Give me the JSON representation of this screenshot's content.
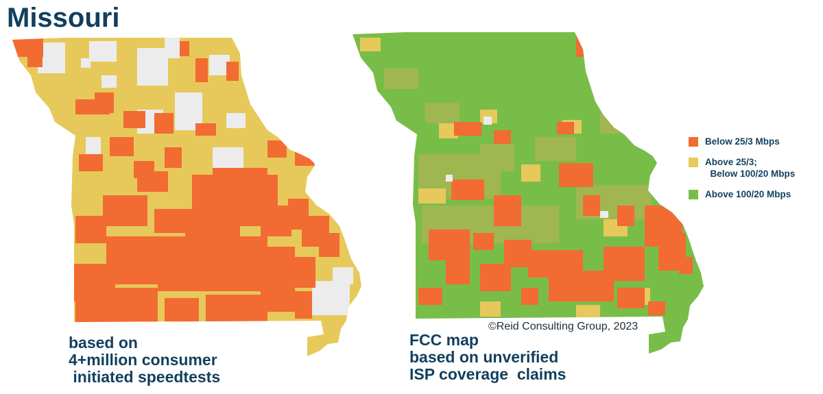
{
  "title": "Missouri",
  "left_map": {
    "caption_lines": [
      "based on",
      "4+million consumer",
      " initiated speedtests"
    ]
  },
  "right_map": {
    "caption_lines": [
      "FCC map",
      "based on unverified",
      "ISP coverage  claims"
    ]
  },
  "copyright": "©Reid Consulting Group, 2023",
  "legend": [
    {
      "lines": [
        "Below 25/3 Mbps"
      ],
      "color": "#f26b32"
    },
    {
      "lines": [
        "Above 25/3;",
        "  Below 100/20 Mbps"
      ],
      "color": "#e6c95a"
    },
    {
      "lines": [
        "Above 100/20 Mbps"
      ],
      "color": "#79bd49"
    }
  ],
  "colors": {
    "below_25_3": "#f26b32",
    "mid": "#e6c95a",
    "above_100_20": "#79bd49",
    "no_data": "#ececec",
    "title": "#123f5e"
  }
}
